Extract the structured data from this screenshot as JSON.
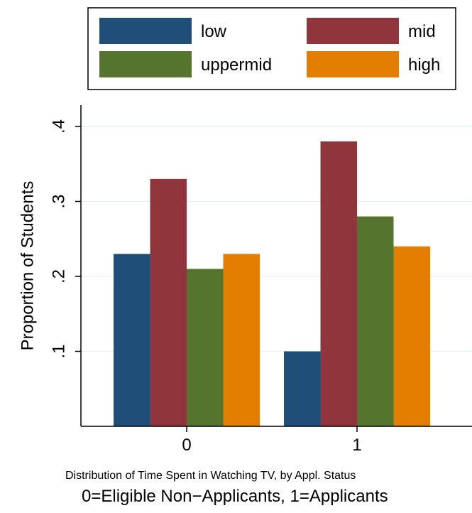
{
  "chart_data": {
    "type": "bar",
    "categories": [
      "0",
      "1"
    ],
    "series": [
      {
        "name": "low",
        "color": "#1f4e79",
        "values": [
          0.23,
          0.1
        ]
      },
      {
        "name": "mid",
        "color": "#90353b",
        "values": [
          0.33,
          0.38
        ]
      },
      {
        "name": "uppermid",
        "color": "#55752f",
        "values": [
          0.21,
          0.28
        ]
      },
      {
        "name": "high",
        "color": "#e37e00",
        "values": [
          0.23,
          0.24
        ]
      }
    ],
    "ylabel": "Proportion of Students",
    "ylim": [
      0,
      0.4
    ],
    "yticks": [
      0.1,
      0.2,
      0.3,
      0.4
    ],
    "ytick_labels": [
      ".1",
      ".2",
      ".3",
      ".4"
    ],
    "grid": true,
    "grid_color": "#eaf2f3",
    "legend_position": "top",
    "note": "Distribution of Time Spent in Watching TV, by Appl. Status",
    "caption": "0=Eligible Non−Applicants, 1=Applicants"
  }
}
